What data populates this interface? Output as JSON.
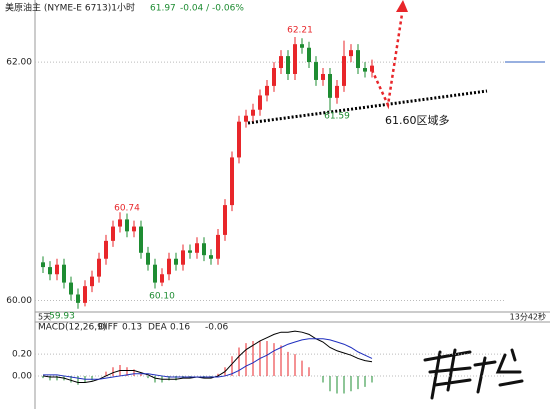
{
  "chart_data": {
    "type": "candlestick",
    "header": {
      "name": "美原油主 (NYME-E 6713)1小时",
      "last": "61.97",
      "change": "-0.04 / -0.06%"
    },
    "open": [
      60.32,
      60.28,
      60.22,
      60.3,
      60.15,
      60.05,
      59.98,
      60.12,
      60.2,
      60.35,
      60.5,
      60.62,
      60.68,
      60.58,
      60.62,
      60.4,
      60.3,
      60.15,
      60.22,
      60.35,
      60.3,
      60.42,
      60.4,
      60.48,
      60.38,
      60.35,
      60.55,
      60.8,
      61.2,
      61.5,
      61.55,
      61.6,
      61.72,
      61.8,
      61.95,
      62.05,
      61.9,
      62.15,
      62.12,
      62.0,
      61.85,
      61.9,
      61.7,
      61.8,
      62.05,
      62.1,
      61.95,
      61.92
    ],
    "high": [
      60.37,
      60.33,
      60.35,
      60.35,
      60.2,
      60.1,
      60.17,
      60.25,
      60.4,
      60.55,
      60.67,
      60.74,
      60.73,
      60.67,
      60.67,
      60.45,
      60.35,
      60.27,
      60.4,
      60.4,
      60.47,
      60.47,
      60.53,
      60.53,
      60.43,
      60.6,
      60.85,
      61.25,
      61.55,
      61.6,
      61.65,
      61.77,
      61.85,
      62.0,
      62.1,
      62.1,
      62.21,
      62.2,
      62.17,
      62.05,
      61.95,
      61.95,
      61.85,
      62.18,
      62.15,
      62.15,
      62.0,
      62.02
    ],
    "low": [
      60.23,
      60.17,
      60.17,
      60.1,
      60.0,
      59.93,
      59.95,
      60.07,
      60.15,
      60.3,
      60.45,
      60.57,
      60.53,
      60.53,
      60.35,
      60.25,
      60.1,
      60.12,
      60.17,
      60.25,
      60.25,
      60.35,
      60.35,
      60.33,
      60.3,
      60.3,
      60.5,
      60.75,
      61.15,
      61.45,
      61.5,
      61.55,
      61.67,
      61.75,
      61.9,
      61.85,
      61.85,
      62.07,
      61.95,
      61.8,
      61.8,
      61.59,
      61.65,
      61.75,
      62.0,
      61.9,
      61.87,
      61.87
    ],
    "close": [
      60.28,
      60.22,
      60.3,
      60.15,
      60.05,
      59.98,
      60.12,
      60.2,
      60.35,
      60.5,
      60.62,
      60.68,
      60.58,
      60.62,
      60.4,
      60.3,
      60.15,
      60.22,
      60.35,
      60.3,
      60.42,
      60.4,
      60.48,
      60.38,
      60.35,
      60.55,
      60.8,
      61.2,
      61.5,
      61.55,
      61.6,
      61.72,
      61.8,
      61.95,
      62.05,
      61.9,
      62.15,
      62.12,
      62.0,
      61.85,
      61.9,
      61.7,
      61.8,
      62.05,
      62.1,
      61.95,
      61.92,
      61.97
    ],
    "up_color": "#e8262a",
    "down_color": "#1e8c32",
    "ylim": [
      59.92,
      62.42
    ],
    "yticks": [
      {
        "value": 60,
        "label": "60.00"
      },
      {
        "value": 62,
        "label": "62.00"
      }
    ],
    "annotations": [
      "62.21",
      "61.59",
      "60.74",
      "60.10",
      "59.93",
      "61.60区域多"
    ],
    "range_label": "5天",
    "timer": "13分42秒",
    "macd": {
      "title": "MACD(12,26,9)",
      "diff_label": "DIFF",
      "diff_value": "0.13",
      "dea_label": "DEA",
      "dea_value": "0.16",
      "macd_value": "-0.06",
      "diff": [
        0.0,
        -0.01,
        -0.01,
        -0.02,
        -0.04,
        -0.06,
        -0.06,
        -0.05,
        -0.03,
        0.0,
        0.03,
        0.05,
        0.05,
        0.05,
        0.03,
        0.01,
        -0.02,
        -0.03,
        -0.03,
        -0.03,
        -0.02,
        -0.02,
        -0.01,
        -0.02,
        -0.02,
        0.0,
        0.04,
        0.11,
        0.18,
        0.24,
        0.28,
        0.32,
        0.35,
        0.38,
        0.4,
        0.4,
        0.41,
        0.4,
        0.38,
        0.34,
        0.31,
        0.26,
        0.23,
        0.21,
        0.19,
        0.16,
        0.14,
        0.13
      ],
      "dea": [
        0.01,
        0.01,
        0.01,
        0.0,
        -0.01,
        -0.02,
        -0.03,
        -0.03,
        -0.03,
        -0.02,
        -0.01,
        0.0,
        0.01,
        0.02,
        0.02,
        0.02,
        0.01,
        0.0,
        -0.01,
        -0.01,
        -0.01,
        -0.01,
        -0.01,
        -0.01,
        -0.01,
        -0.01,
        0.0,
        0.02,
        0.05,
        0.09,
        0.12,
        0.16,
        0.19,
        0.23,
        0.26,
        0.29,
        0.31,
        0.33,
        0.34,
        0.34,
        0.34,
        0.33,
        0.31,
        0.29,
        0.26,
        0.22,
        0.19,
        0.16
      ],
      "hist": [
        -0.02,
        -0.04,
        -0.04,
        -0.04,
        -0.06,
        -0.08,
        -0.06,
        -0.04,
        0.0,
        0.04,
        0.08,
        0.1,
        0.08,
        0.06,
        0.02,
        -0.02,
        -0.06,
        -0.06,
        -0.04,
        -0.04,
        -0.02,
        -0.02,
        0.0,
        -0.02,
        -0.02,
        0.02,
        0.08,
        0.18,
        0.26,
        0.3,
        0.32,
        0.32,
        0.32,
        0.3,
        0.28,
        0.22,
        0.2,
        0.14,
        0.08,
        0.0,
        -0.06,
        -0.14,
        -0.16,
        -0.16,
        -0.14,
        -0.12,
        -0.1,
        -0.06
      ],
      "diff_color": "#000000",
      "dea_color": "#1f2fbf",
      "ylim": [
        -0.22,
        0.42
      ],
      "yticks": [
        {
          "value": 0.2,
          "label": "0.20"
        },
        {
          "value": 0,
          "label": "0.00"
        }
      ]
    }
  }
}
